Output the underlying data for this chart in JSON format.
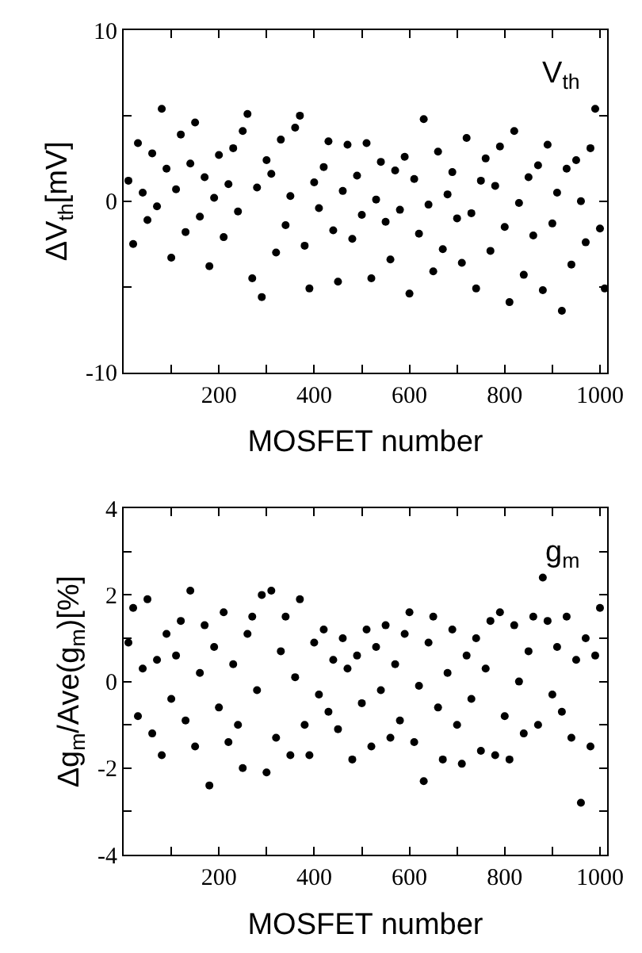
{
  "chart_data": [
    {
      "type": "scatter",
      "xlabel": "MOSFET number",
      "ylabel": "ΔV$_{th}$[mV]",
      "annotations": [
        "V$_{th}$"
      ],
      "marker": "circle",
      "color": "#000000",
      "xlim": [
        0,
        1015
      ],
      "ylim": [
        -10,
        10
      ],
      "xticks": [
        {
          "value": 100,
          "label": null
        },
        200,
        {
          "value": 300,
          "label": null
        },
        400,
        {
          "value": 500,
          "label": null
        },
        600,
        {
          "value": 700,
          "label": null
        },
        800,
        {
          "value": 900,
          "label": null
        },
        1000
      ],
      "yticks": [
        -10,
        {
          "value": -5,
          "label": null
        },
        0,
        {
          "value": 5,
          "label": null
        },
        10
      ],
      "x": [
        10,
        20,
        30,
        40,
        50,
        60,
        70,
        80,
        90,
        100,
        110,
        120,
        130,
        140,
        150,
        160,
        170,
        180,
        190,
        200,
        210,
        220,
        230,
        240,
        250,
        260,
        270,
        280,
        290,
        300,
        310,
        320,
        330,
        340,
        350,
        360,
        370,
        380,
        390,
        400,
        410,
        420,
        430,
        440,
        450,
        460,
        470,
        480,
        490,
        500,
        510,
        520,
        530,
        540,
        550,
        560,
        570,
        580,
        590,
        600,
        610,
        620,
        630,
        640,
        650,
        660,
        670,
        680,
        690,
        700,
        710,
        720,
        730,
        740,
        750,
        760,
        770,
        780,
        790,
        800,
        810,
        820,
        830,
        840,
        850,
        860,
        870,
        880,
        890,
        900,
        910,
        920,
        930,
        940,
        950,
        960,
        970,
        980,
        990,
        1000,
        1010
      ],
      "values": [
        1.2,
        -2.5,
        3.4,
        0.5,
        -1.1,
        2.8,
        -0.3,
        5.4,
        1.9,
        -3.3,
        0.7,
        3.9,
        -1.8,
        2.2,
        4.6,
        -0.9,
        1.4,
        -3.8,
        0.2,
        2.7,
        -2.1,
        1.0,
        3.1,
        -0.6,
        4.1,
        5.1,
        -4.5,
        0.8,
        -5.6,
        2.4,
        1.6,
        -3.0,
        3.6,
        -1.4,
        0.3,
        4.3,
        5.0,
        -2.6,
        -5.1,
        1.1,
        -0.4,
        2.0,
        3.5,
        -1.7,
        -4.7,
        0.6,
        3.3,
        -2.2,
        1.5,
        -0.8,
        3.4,
        -4.5,
        0.1,
        2.3,
        -1.2,
        -3.4,
        1.8,
        -0.5,
        2.6,
        -5.4,
        1.3,
        -1.9,
        4.8,
        -0.2,
        -4.1,
        2.9,
        -2.8,
        0.4,
        1.7,
        -1.0,
        -3.6,
        3.7,
        -0.7,
        -5.1,
        1.2,
        2.5,
        -2.9,
        0.9,
        3.2,
        -1.5,
        -5.9,
        4.1,
        -0.1,
        -4.3,
        1.4,
        -2.0,
        2.1,
        -5.2,
        3.3,
        -1.3,
        0.5,
        -6.4,
        1.9,
        -3.7,
        2.4,
        0.0,
        -2.4,
        3.1,
        5.4,
        -1.6,
        -5.1
      ]
    },
    {
      "type": "scatter",
      "xlabel": "MOSFET number",
      "ylabel": "Δg$_{m}$/Ave(g$_{m}$)[%]",
      "annotations": [
        "g$_{m}$"
      ],
      "marker": "circle",
      "color": "#000000",
      "xlim": [
        0,
        1015
      ],
      "ylim": [
        -4,
        4
      ],
      "xticks": [
        {
          "value": 100,
          "label": null
        },
        200,
        {
          "value": 300,
          "label": null
        },
        400,
        {
          "value": 500,
          "label": null
        },
        600,
        {
          "value": 700,
          "label": null
        },
        800,
        {
          "value": 900,
          "label": null
        },
        1000
      ],
      "yticks": [
        -4,
        {
          "value": -3,
          "label": null
        },
        -2,
        {
          "value": -1,
          "label": null
        },
        0,
        {
          "value": 1,
          "label": null
        },
        2,
        {
          "value": 3,
          "label": null
        },
        4
      ],
      "x": [
        10,
        20,
        30,
        40,
        50,
        60,
        70,
        80,
        90,
        100,
        110,
        120,
        130,
        140,
        150,
        160,
        170,
        180,
        190,
        200,
        210,
        220,
        230,
        240,
        250,
        260,
        270,
        280,
        290,
        300,
        310,
        320,
        330,
        340,
        350,
        360,
        370,
        380,
        390,
        400,
        410,
        420,
        430,
        440,
        450,
        460,
        470,
        480,
        490,
        500,
        510,
        520,
        530,
        540,
        550,
        560,
        570,
        580,
        590,
        600,
        610,
        620,
        630,
        640,
        650,
        660,
        670,
        680,
        690,
        700,
        710,
        720,
        730,
        740,
        750,
        760,
        770,
        780,
        790,
        800,
        810,
        820,
        830,
        840,
        850,
        860,
        870,
        880,
        890,
        900,
        910,
        920,
        930,
        940,
        950,
        960,
        970,
        980,
        990,
        1000
      ],
      "values": [
        0.9,
        1.7,
        -0.8,
        0.3,
        1.9,
        -1.2,
        0.5,
        -1.7,
        1.1,
        -0.4,
        0.6,
        1.4,
        -0.9,
        2.1,
        -1.5,
        0.2,
        1.3,
        -2.4,
        0.8,
        -0.6,
        1.6,
        -1.4,
        0.4,
        -1.0,
        -2.0,
        1.1,
        1.5,
        -0.2,
        2.0,
        -2.1,
        2.1,
        -1.3,
        0.7,
        1.5,
        -1.7,
        0.1,
        1.9,
        -1.0,
        -1.7,
        0.9,
        -0.3,
        1.2,
        -0.7,
        0.5,
        -1.1,
        1.0,
        0.3,
        -1.8,
        0.6,
        -0.5,
        1.2,
        -1.5,
        0.8,
        -0.2,
        1.3,
        -1.3,
        0.4,
        -0.9,
        1.1,
        1.6,
        -1.4,
        -0.1,
        -2.3,
        0.9,
        1.5,
        -0.6,
        -1.8,
        0.2,
        1.2,
        -1.0,
        -1.9,
        0.6,
        -0.4,
        1.0,
        -1.6,
        0.3,
        1.4,
        -1.7,
        1.6,
        -0.8,
        -1.8,
        1.3,
        0.0,
        -1.2,
        0.7,
        1.5,
        -1.0,
        2.4,
        1.4,
        -0.3,
        0.8,
        -0.7,
        1.5,
        -1.3,
        0.5,
        -2.8,
        1.0,
        -1.5,
        0.6,
        1.7
      ]
    }
  ]
}
